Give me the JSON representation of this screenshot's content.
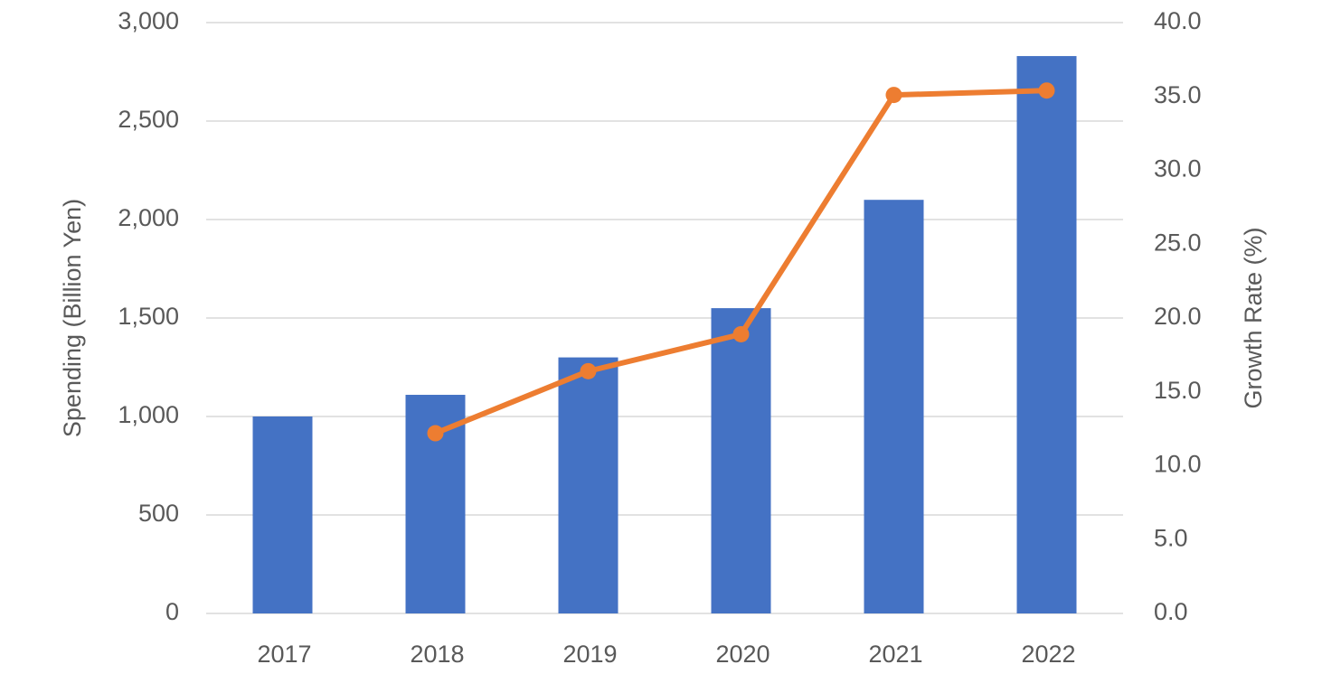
{
  "chart_data": {
    "type": "bar",
    "y_label": "Spending (Billion Yen)",
    "y2_label": "Growth Rate (%)",
    "categories": [
      "2017",
      "2018",
      "2019",
      "2020",
      "2021",
      "2022"
    ],
    "series": [
      {
        "name": "Spending",
        "type": "bar",
        "color": "#4472c4",
        "values": [
          1000,
          1110,
          1300,
          1550,
          2100,
          2830
        ]
      },
      {
        "name": "Growth Rate",
        "type": "line",
        "axis": "y2",
        "color": "#ed7d31",
        "values": [
          null,
          12.2,
          16.4,
          18.9,
          35.1,
          35.4
        ]
      }
    ],
    "ylim": [
      0,
      3000
    ],
    "yticks": [
      0,
      500,
      {
        "value": 1000,
        "label": "1,000"
      },
      {
        "value": 1500,
        "label": "1,500"
      },
      {
        "value": 2000,
        "label": "2,000"
      },
      {
        "value": 2500,
        "label": "2,500"
      },
      {
        "value": 3000,
        "label": "3,000"
      }
    ],
    "y2lim": [
      0,
      40
    ],
    "y2ticks": [
      {
        "value": 0,
        "label": "0.0"
      },
      {
        "value": 5,
        "label": "5.0"
      },
      {
        "value": 10,
        "label": "10.0"
      },
      {
        "value": 15,
        "label": "15.0"
      },
      {
        "value": 20,
        "label": "20.0"
      },
      {
        "value": 25,
        "label": "25.0"
      },
      {
        "value": 30,
        "label": "30.0"
      },
      {
        "value": 35,
        "label": "35.0"
      },
      {
        "value": 40,
        "label": "40.0"
      }
    ],
    "grid": true
  }
}
